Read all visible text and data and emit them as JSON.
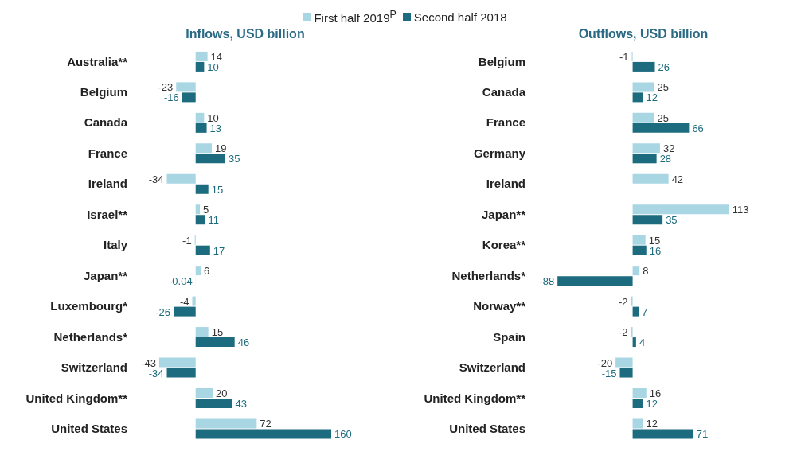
{
  "chart_data": [
    {
      "type": "bar",
      "orientation": "horizontal",
      "title": "Inflows, USD billion",
      "categories": [
        "Australia**",
        "Belgium",
        "Canada",
        "France",
        "Ireland",
        "Israel**",
        "Italy",
        "Japan**",
        "Luxembourg*",
        "Netherlands*",
        "Switzerland",
        "United Kingdom**",
        "United States"
      ],
      "series": [
        {
          "name": "First half 2019$^{P}$",
          "color": "#a9d6e3",
          "values": [
            14,
            -23,
            10,
            19,
            -34,
            5,
            -1,
            6,
            -4,
            15,
            -43,
            20,
            72
          ]
        },
        {
          "name": "Second half 2018",
          "color": "#1d6b7e",
          "values": [
            10,
            -16,
            13,
            35,
            15,
            11,
            17,
            -0.04,
            -26,
            46,
            -34,
            43,
            160
          ]
        }
      ],
      "data_labels": true,
      "legend": "top"
    },
    {
      "type": "bar",
      "orientation": "horizontal",
      "title": "Outflows, USD billion",
      "categories": [
        "Belgium",
        "Canada",
        "France",
        "Germany",
        "Ireland",
        "Japan**",
        "Korea**",
        "Netherlands*",
        "Norway**",
        "Spain",
        "Switzerland",
        "United Kingdom**",
        "United States"
      ],
      "series": [
        {
          "color": "#a9d6e3",
          "values": [
            -1,
            25,
            25,
            32,
            42,
            113,
            15,
            8,
            -2,
            -2,
            -20,
            16,
            12
          ]
        },
        {
          "color": "#1d6b7e",
          "values": [
            26,
            12,
            66,
            28,
            null,
            35,
            16,
            -88,
            7,
            4,
            -15,
            12,
            71
          ]
        }
      ],
      "data_labels": true
    }
  ]
}
